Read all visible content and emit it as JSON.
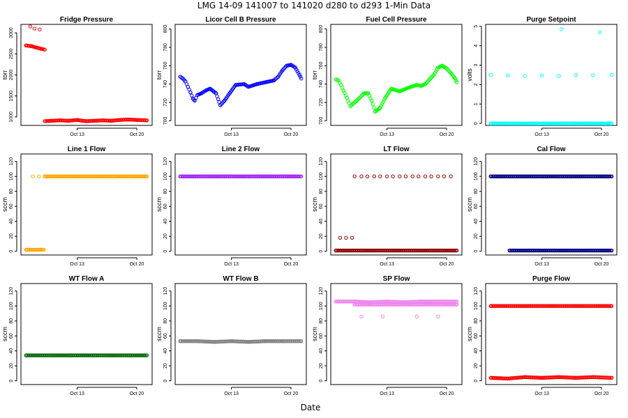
{
  "figure_title": "LMG   14-09    141007 to 141020    d280 to d293   1-Min Data",
  "xlabel": "Date",
  "chart_data": [
    {
      "type": "scatter",
      "title": "Fridge Pressure",
      "ylabel": "torr",
      "ylim": [
        800,
        3200
      ],
      "yticks": [
        1000,
        1500,
        2000,
        2500,
        3000
      ],
      "xticks": [
        "Oct 13",
        "Oct 20"
      ],
      "color": "#ff0000",
      "series": [
        {
          "name": "main",
          "x": [
            0.0,
            0.7,
            1.2,
            1.8,
            2.2
          ],
          "y": [
            2700,
            2680,
            2650,
            2620,
            2600
          ]
        },
        {
          "name": "high",
          "x": [
            0.5,
            1.0,
            1.6
          ],
          "y": [
            3150,
            3100,
            3080
          ]
        },
        {
          "name": "low",
          "x": [
            2.2,
            3,
            4,
            5,
            6,
            7,
            8,
            9,
            10,
            11,
            12,
            13,
            14.2
          ],
          "y": [
            900,
            910,
            920,
            910,
            930,
            900,
            910,
            920,
            910,
            930,
            940,
            930,
            920
          ]
        }
      ]
    },
    {
      "type": "scatter",
      "title": "Licor Cell B Pressure",
      "ylabel": "torr",
      "ylim": [
        695,
        805
      ],
      "yticks": [
        700,
        720,
        740,
        760,
        780,
        800
      ],
      "xticks": [
        "Oct 13",
        "Oct 20"
      ],
      "color": "#0000ff",
      "series": [
        {
          "name": "main",
          "x": [
            0.0,
            0.3,
            0.6,
            0.9,
            1.2,
            1.5,
            1.7,
            2.0,
            2.5,
            3.0,
            3.5,
            4.2,
            4.7,
            5.2,
            5.8,
            6.5,
            7.5,
            8.0,
            9.0,
            10.0,
            11.0,
            11.5,
            12.0,
            12.5,
            13.0,
            13.5,
            14.0,
            14.2
          ],
          "y": [
            748,
            746,
            743,
            737,
            731,
            724,
            722,
            728,
            730,
            733,
            735,
            730,
            717,
            722,
            730,
            739,
            740,
            737,
            740,
            742,
            744,
            748,
            755,
            760,
            761,
            758,
            750,
            746
          ]
        }
      ]
    },
    {
      "type": "scatter",
      "title": "Fuel Cell Pressure",
      "ylabel": "torr",
      "ylim": [
        695,
        805
      ],
      "yticks": [
        700,
        720,
        740,
        760,
        780,
        800
      ],
      "xticks": [
        "Oct 13",
        "Oct 20"
      ],
      "color": "#00ff00",
      "series": [
        {
          "name": "main",
          "x": [
            0.0,
            0.3,
            0.6,
            0.9,
            1.3,
            1.7,
            2.2,
            2.8,
            3.3,
            3.8,
            4.2,
            4.6,
            5.2,
            5.8,
            6.5,
            7.5,
            8.5,
            9.5,
            10.0,
            10.5,
            11.0,
            11.5,
            12.0,
            12.5,
            13.0,
            13.5,
            14.0,
            14.2
          ],
          "y": [
            745,
            744,
            739,
            733,
            725,
            716,
            720,
            725,
            730,
            730,
            722,
            710,
            714,
            725,
            735,
            732,
            736,
            739,
            738,
            740,
            745,
            750,
            758,
            760,
            757,
            752,
            746,
            742
          ]
        }
      ]
    },
    {
      "type": "scatter",
      "title": "Purge Setpoint",
      "ylabel": "volts",
      "ylim": [
        -0.1,
        5.1
      ],
      "yticks": [
        0,
        1,
        2,
        3,
        4,
        5
      ],
      "xticks": [
        "Oct 13",
        "Oct 20"
      ],
      "color": "#00ffff",
      "series": [
        {
          "name": "high",
          "x": [
            0.0,
            2,
            4,
            6,
            8,
            10,
            12,
            14.2
          ],
          "y": [
            2.5,
            2.48,
            2.45,
            2.47,
            2.45,
            2.5,
            2.48,
            2.5
          ]
        },
        {
          "name": "low",
          "x": [
            0.0,
            14.2
          ],
          "y": [
            0.0,
            0.0
          ]
        },
        {
          "name": "spikes",
          "x": [
            8.3,
            12.8
          ],
          "y": [
            4.85,
            4.7
          ]
        }
      ]
    },
    {
      "type": "scatter",
      "title": "Line 1 Flow",
      "ylabel": "sccm",
      "ylim": [
        -5,
        130
      ],
      "yticks": [
        0,
        20,
        40,
        60,
        80,
        100,
        120
      ],
      "xticks": [
        "Oct 13",
        "Oct 20"
      ],
      "color": "#ffa500",
      "series": [
        {
          "name": "low",
          "x": [
            0.0,
            2.1
          ],
          "y": [
            2,
            2
          ]
        },
        {
          "name": "main",
          "x": [
            2.2,
            14.2
          ],
          "y": [
            100,
            100
          ]
        },
        {
          "name": "early",
          "x": [
            0.8,
            1.5
          ],
          "y": [
            100,
            100
          ]
        }
      ]
    },
    {
      "type": "scatter",
      "title": "Line 2 Flow",
      "ylabel": "sccm",
      "ylim": [
        -5,
        130
      ],
      "yticks": [
        0,
        20,
        40,
        60,
        80,
        100,
        120
      ],
      "xticks": [
        "Oct 13",
        "Oct 20"
      ],
      "color": "#a020f0",
      "series": [
        {
          "name": "main",
          "x": [
            0.0,
            14.2
          ],
          "y": [
            100,
            100
          ]
        }
      ]
    },
    {
      "type": "scatter",
      "title": "LT Flow",
      "ylabel": "sccm",
      "ylim": [
        -5,
        130
      ],
      "yticks": [
        0,
        20,
        40,
        60,
        80,
        100,
        120
      ],
      "xticks": [
        "Oct 13",
        "Oct 20"
      ],
      "color": "#8b0000",
      "series": [
        {
          "name": "base",
          "x": [
            0.0,
            14.2
          ],
          "y": [
            1,
            1
          ]
        },
        {
          "name": "pulses",
          "x": [
            2.2,
            3.0,
            3.7,
            4.5,
            5.2,
            6.0,
            6.7,
            7.5,
            8.2,
            9.0,
            9.7,
            10.5,
            11.2,
            12.0,
            12.7,
            13.5
          ],
          "y": [
            100,
            100,
            100,
            100,
            100,
            100,
            100,
            100,
            100,
            100,
            100,
            100,
            100,
            100,
            100,
            100
          ]
        },
        {
          "name": "mid",
          "x": [
            0.5,
            1.2,
            1.9
          ],
          "y": [
            18,
            18,
            18
          ]
        }
      ]
    },
    {
      "type": "scatter",
      "title": "Cal Flow",
      "ylabel": "sccm",
      "ylim": [
        -5,
        130
      ],
      "yticks": [
        0,
        20,
        40,
        60,
        80,
        100,
        120
      ],
      "xticks": [
        "Oct 13",
        "Oct 20"
      ],
      "color": "#000080",
      "series": [
        {
          "name": "main",
          "x": [
            0.0,
            14.2
          ],
          "y": [
            100,
            100
          ]
        },
        {
          "name": "base",
          "x": [
            2.2,
            14.2
          ],
          "y": [
            1,
            1
          ]
        }
      ]
    },
    {
      "type": "scatter",
      "title": "WT Flow A",
      "ylabel": "sccm",
      "ylim": [
        -5,
        130
      ],
      "yticks": [
        0,
        20,
        40,
        60,
        80,
        100,
        120
      ],
      "xticks": [
        "Oct 13",
        "Oct 20"
      ],
      "color": "#006400",
      "series": [
        {
          "name": "main",
          "x": [
            0.0,
            14.2
          ],
          "y": [
            34,
            34
          ]
        }
      ]
    },
    {
      "type": "scatter",
      "title": "WT Flow B",
      "ylabel": "sccm",
      "ylim": [
        -5,
        130
      ],
      "yticks": [
        0,
        20,
        40,
        60,
        80,
        100,
        120
      ],
      "xticks": [
        "Oct 13",
        "Oct 20"
      ],
      "color": "#808080",
      "series": [
        {
          "name": "main",
          "x": [
            0.0,
            2,
            4,
            6,
            8,
            10,
            12,
            14.2
          ],
          "y": [
            53,
            53,
            52,
            53,
            52,
            53,
            53,
            53
          ]
        }
      ]
    },
    {
      "type": "scatter",
      "title": "SP Flow",
      "ylabel": "sccm",
      "ylim": [
        -5,
        130
      ],
      "yticks": [
        0,
        20,
        40,
        60,
        80,
        100,
        120
      ],
      "xticks": [
        "Oct 13",
        "Oct 20"
      ],
      "color": "#ee82ee",
      "series": [
        {
          "name": "main",
          "x": [
            0.0,
            2.2,
            4,
            6,
            8,
            10,
            12,
            14.2
          ],
          "y": [
            106,
            106,
            105,
            106,
            105,
            106,
            106,
            106
          ]
        },
        {
          "name": "lower",
          "x": [
            2.2,
            14.2
          ],
          "y": [
            102,
            102
          ]
        },
        {
          "name": "dips",
          "x": [
            3.0,
            5.5,
            9.5,
            12.0
          ],
          "y": [
            86,
            86,
            86,
            86
          ]
        }
      ]
    },
    {
      "type": "scatter",
      "title": "Purge Flow",
      "ylabel": "sccm",
      "ylim": [
        -5,
        130
      ],
      "yticks": [
        0,
        20,
        40,
        60,
        80,
        100,
        120
      ],
      "xticks": [
        "Oct 13",
        "Oct 20"
      ],
      "color": "#ff0000",
      "series": [
        {
          "name": "main",
          "x": [
            0.0,
            14.2
          ],
          "y": [
            100,
            100
          ]
        },
        {
          "name": "low",
          "x": [
            0.0,
            2,
            4,
            6,
            8,
            10,
            12,
            14.2
          ],
          "y": [
            4,
            3,
            5,
            4,
            5,
            4,
            5,
            4
          ]
        }
      ]
    }
  ]
}
